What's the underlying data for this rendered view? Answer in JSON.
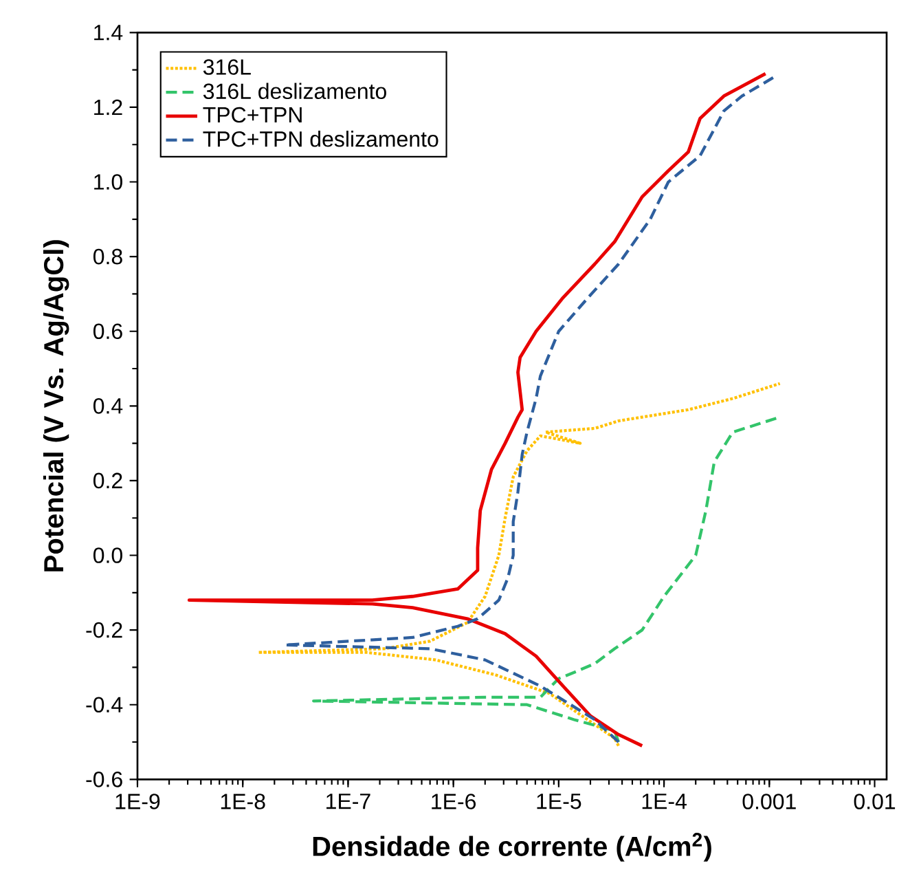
{
  "chart_data": {
    "type": "line",
    "xlabel": "Densidade de corrente (A/cm$^{2}$)",
    "ylabel": "Potencial (V Vs. Ag/AgCl)",
    "log": "x",
    "grid": false,
    "legend": "top left",
    "marker": "none",
    "xlim": [
      1e-09,
      0.013
    ],
    "ylim": [
      -0.6,
      1.4
    ],
    "xticks": [
      {
        "value": 1e-09,
        "label": "1E-9"
      },
      {
        "value": 1e-08,
        "label": "1E-8"
      },
      {
        "value": 1e-07,
        "label": "1E-7"
      },
      {
        "value": 1e-06,
        "label": "1E-6"
      },
      {
        "value": 1e-05,
        "label": "1E-5"
      },
      {
        "value": 0.0001,
        "label": "1E-4"
      },
      0.001,
      0.01
    ],
    "yticks": [
      {
        "value": -0.6,
        "label": "-0.6"
      },
      {
        "value": -0.4,
        "label": "-0.4"
      },
      {
        "value": -0.2,
        "label": "-0.2"
      },
      {
        "value": 0,
        "label": "0.0"
      },
      {
        "value": 0.2,
        "label": "0.2"
      },
      {
        "value": 0.4,
        "label": "0.4"
      },
      {
        "value": 0.6,
        "label": "0.6"
      },
      {
        "value": 0.8,
        "label": "0.8"
      },
      {
        "value": 1.0,
        "label": "1.0"
      },
      {
        "value": 1.2,
        "label": "1.2"
      },
      {
        "value": 1.4,
        "label": "1.4"
      }
    ],
    "series": [
      {
        "name": "316L",
        "color": "#ffc000",
        "line_style": "dotted",
        "x": [
          3.7e-05,
          3.4e-05,
          8.2e-06,
          2.5e-06,
          6.8e-07,
          1.5e-07,
          1.4e-08,
          2.2e-07,
          6e-07,
          1.36e-06,
          2e-06,
          2.7e-06,
          3.1e-06,
          3.7e-06,
          5e-06,
          6.7e-06,
          1.6e-05,
          7.5e-06,
          2.2e-05,
          3.7e-05,
          0.00017,
          0.00045,
          0.00126
        ],
        "values": [
          -0.51,
          -0.49,
          -0.37,
          -0.32,
          -0.28,
          -0.26,
          -0.26,
          -0.25,
          -0.23,
          -0.18,
          -0.11,
          0.0,
          0.1,
          0.21,
          0.28,
          0.32,
          0.3,
          0.33,
          0.34,
          0.36,
          0.39,
          0.42,
          0.46
        ]
      },
      {
        "name": "316L deslizamento",
        "color": "#33c46a",
        "line_style": "dashed",
        "x": [
          3.7e-05,
          3.4e-05,
          1.4e-05,
          5e-06,
          4.7e-08,
          2e-06,
          6.7e-06,
          1e-05,
          1.5e-05,
          2.2e-05,
          3.4e-05,
          6.2e-05,
          0.0001,
          0.0002,
          0.00025,
          0.0003,
          0.00045,
          0.00126
        ],
        "values": [
          -0.5,
          -0.47,
          -0.44,
          -0.4,
          -0.39,
          -0.38,
          -0.38,
          -0.33,
          -0.31,
          -0.29,
          -0.25,
          -0.2,
          -0.11,
          0.0,
          0.12,
          0.25,
          0.33,
          0.37
        ]
      },
      {
        "name": "TPC+TPN",
        "color": "#e80000",
        "line_style": "solid",
        "x": [
          6.2e-05,
          3.7e-05,
          2e-05,
          1.1e-05,
          6.1e-06,
          3.1e-06,
          1.36e-06,
          4.1e-07,
          1.7e-07,
          3.1e-09,
          1.7e-07,
          4.1e-07,
          1.1e-06,
          1.7e-06,
          1.7e-06,
          1.8e-06,
          2.3e-06,
          3.1e-06,
          4.1e-06,
          4.5e-06,
          4.1e-06,
          4.3e-06,
          6.1e-06,
          1.1e-05,
          2.2e-05,
          3.4e-05,
          6.2e-05,
          0.00011,
          0.00017,
          0.00022,
          0.00037,
          0.00092
        ],
        "values": [
          -0.51,
          -0.48,
          -0.43,
          -0.35,
          -0.27,
          -0.21,
          -0.17,
          -0.14,
          -0.13,
          -0.12,
          -0.12,
          -0.11,
          -0.09,
          -0.04,
          0.02,
          0.12,
          0.23,
          0.3,
          0.37,
          0.39,
          0.49,
          0.53,
          0.6,
          0.69,
          0.78,
          0.84,
          0.96,
          1.03,
          1.08,
          1.17,
          1.23,
          1.29
        ]
      },
      {
        "name": "TPC+TPN deslizamento",
        "color": "#2e5f9e",
        "line_style": "dashed",
        "x": [
          3.7e-05,
          2.2e-05,
          6.7e-06,
          2e-06,
          6e-07,
          2.5e-08,
          4.1e-07,
          1.1e-06,
          1.7e-06,
          2.7e-06,
          3.3e-06,
          3.7e-06,
          3.7e-06,
          4.1e-06,
          4.5e-06,
          5e-06,
          6.1e-06,
          6.7e-06,
          1e-05,
          1.9e-05,
          3.7e-05,
          7.4e-05,
          0.00011,
          0.00022,
          0.00037,
          0.00055,
          0.0011
        ],
        "values": [
          -0.5,
          -0.44,
          -0.35,
          -0.28,
          -0.25,
          -0.24,
          -0.22,
          -0.19,
          -0.17,
          -0.12,
          -0.06,
          0.0,
          0.09,
          0.17,
          0.27,
          0.33,
          0.42,
          0.48,
          0.6,
          0.69,
          0.78,
          0.9,
          1.0,
          1.07,
          1.19,
          1.23,
          1.28
        ]
      }
    ]
  }
}
